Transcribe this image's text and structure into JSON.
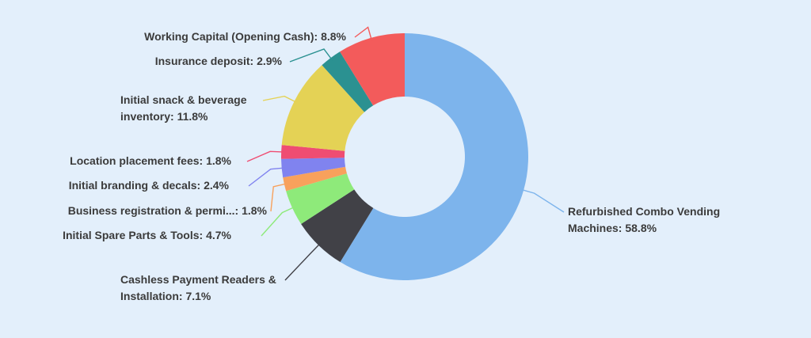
{
  "colors": {
    "background": "#e3effb",
    "label_text": "#3b3b3b"
  },
  "chart_data": {
    "type": "pie",
    "variant": "donut",
    "title": "",
    "legend": "none",
    "series": [
      {
        "label": "Refurbished Combo Vending Machines",
        "value": 58.8,
        "display": "58.8%",
        "color": "#7db4ec"
      },
      {
        "label": "Cashless Payment Readers & Installation",
        "value": 7.1,
        "display": "7.1%",
        "color": "#414147"
      },
      {
        "label": "Initial Spare Parts & Tools",
        "value": 4.7,
        "display": "4.7%",
        "color": "#8eea7a"
      },
      {
        "label": "Business registration & permi...",
        "value": 1.8,
        "display": "1.8%",
        "color": "#f8a15c"
      },
      {
        "label": "Initial branding & decals",
        "value": 2.4,
        "display": "2.4%",
        "color": "#8083ef"
      },
      {
        "label": "Location placement fees",
        "value": 1.8,
        "display": "1.8%",
        "color": "#ef4d72"
      },
      {
        "label": "Initial snack & beverage inventory",
        "value": 11.8,
        "display": "11.8%",
        "color": "#e4d255"
      },
      {
        "label": "Insurance deposit",
        "value": 2.9,
        "display": "2.9%",
        "color": "#2b9191"
      },
      {
        "label": "Working Capital (Opening Cash)",
        "value": 8.8,
        "display": "8.8%",
        "color": "#f35b5b"
      }
    ]
  }
}
